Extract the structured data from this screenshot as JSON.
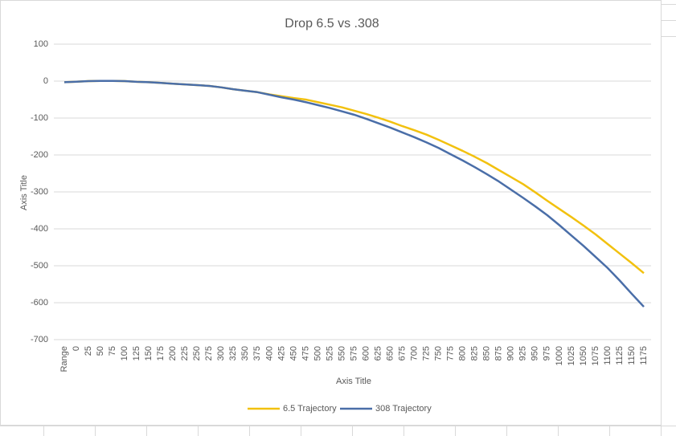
{
  "chart_data": {
    "type": "line",
    "title": "Drop 6.5 vs .308",
    "x_label": "Axis Title",
    "y_label": "Axis Title",
    "categories": [
      "Range",
      "0",
      "25",
      "50",
      "75",
      "100",
      "125",
      "150",
      "175",
      "200",
      "225",
      "250",
      "275",
      "300",
      "325",
      "350",
      "375",
      "400",
      "425",
      "450",
      "475",
      "500",
      "525",
      "550",
      "575",
      "600",
      "625",
      "650",
      "675",
      "700",
      "725",
      "750",
      "775",
      "800",
      "825",
      "850",
      "875",
      "900",
      "925",
      "950",
      "975",
      "1000",
      "1025",
      "1050",
      "1075",
      "1100",
      "1125",
      "1150",
      "1175"
    ],
    "series": [
      {
        "name": "6.5 Trajectory",
        "color": "#f2c10f",
        "values": [
          -3,
          -1.5,
          0,
          0.5,
          0.5,
          0,
          -2,
          -3,
          -5,
          -7,
          -9,
          -11,
          -13,
          -17,
          -22,
          -26,
          -30,
          -36,
          -41,
          -46,
          -50,
          -57,
          -64,
          -71,
          -80,
          -89,
          -99,
          -110,
          -122,
          -133,
          -145,
          -159,
          -174,
          -189,
          -205,
          -222,
          -241,
          -260,
          -279,
          -301,
          -324,
          -346,
          -368,
          -391,
          -415,
          -441,
          -467,
          -493,
          -520
        ]
      },
      {
        "name": "308 Trajectory",
        "color": "#4a6ea8",
        "values": [
          -3,
          -1.5,
          0,
          0.5,
          0.5,
          0,
          -2,
          -3,
          -5,
          -7,
          -9,
          -11,
          -13,
          -17,
          -22,
          -26,
          -30,
          -37,
          -44,
          -50,
          -57,
          -65,
          -73,
          -82,
          -91,
          -102,
          -114,
          -126,
          -139,
          -152,
          -166,
          -181,
          -198,
          -215,
          -233,
          -252,
          -272,
          -294,
          -316,
          -339,
          -363,
          -390,
          -418,
          -446,
          -476,
          -506,
          -540,
          -576,
          -611
        ]
      }
    ],
    "ylim": [
      -700,
      100
    ],
    "yticks": [
      -700,
      -600,
      -500,
      -400,
      -300,
      -200,
      -100,
      0,
      100
    ],
    "grid": true,
    "legend": "bottom"
  }
}
